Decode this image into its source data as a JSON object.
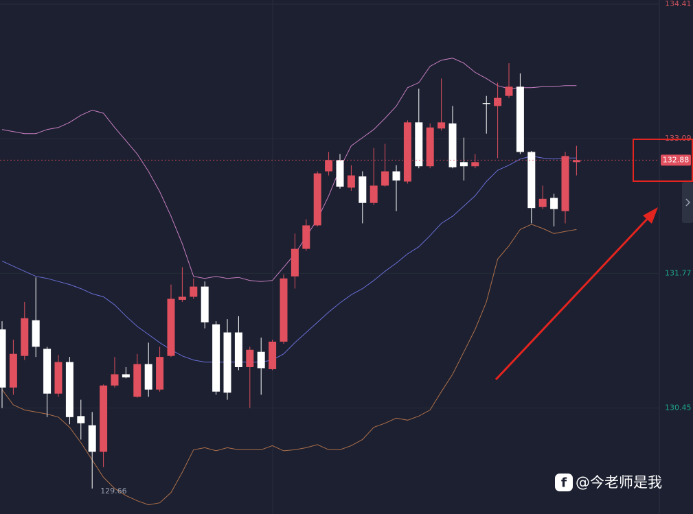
{
  "chart_data": {
    "type": "candlestick",
    "ylim": [
      129.41,
      134.45
    ],
    "yticks": [
      134.41,
      133.09,
      131.77,
      130.45
    ],
    "grid": true,
    "up_color": "#e0505f",
    "down_color": "#ffffff",
    "tick_up_color": "#c9535f",
    "tick_down_color": "#1fa58a",
    "last_price": 132.88,
    "open": [
      131.22,
      130.65,
      130.96,
      131.31,
      131.03,
      130.59,
      130.9,
      130.37,
      130.28,
      130.02,
      130.67,
      130.78,
      130.56,
      130.88,
      130.63,
      130.96,
      131.51,
      131.54,
      131.64,
      131.27,
      131.19,
      131.19,
      130.85,
      131.0,
      130.83,
      131.1,
      131.74,
      132.01,
      132.24,
      132.77,
      132.88,
      132.61,
      132.72,
      132.46,
      132.63,
      132.77,
      132.67,
      133.25,
      132.82,
      133.19,
      133.24,
      132.86,
      132.82,
      133.44,
      133.41,
      133.51,
      133.6,
      132.96,
      132.42,
      132.51,
      132.38,
      132.86
    ],
    "high": [
      131.3,
      131.12,
      131.49,
      131.73,
      131.05,
      130.97,
      130.95,
      130.53,
      130.41,
      130.68,
      130.95,
      130.85,
      130.98,
      131.09,
      131.05,
      131.66,
      131.83,
      131.72,
      131.69,
      131.3,
      131.32,
      131.35,
      131.05,
      131.14,
      131.12,
      131.76,
      132.16,
      132.3,
      132.77,
      132.96,
      132.94,
      132.83,
      132.77,
      133.0,
      133.04,
      132.83,
      133.27,
      133.58,
      133.24,
      133.68,
      133.41,
      133.1,
      132.94,
      133.51,
      133.64,
      133.83,
      133.73,
      132.97,
      132.63,
      132.55,
      132.96,
      133.02
    ],
    "low": [
      130.45,
      130.58,
      130.92,
      130.95,
      130.36,
      130.56,
      130.29,
      130.14,
      129.66,
      129.87,
      130.65,
      130.74,
      130.55,
      130.56,
      130.61,
      130.95,
      131.49,
      131.52,
      131.23,
      130.58,
      130.53,
      130.82,
      130.45,
      130.58,
      130.82,
      131.08,
      131.62,
      131.99,
      132.23,
      132.73,
      132.6,
      132.58,
      132.26,
      132.44,
      132.62,
      132.38,
      132.65,
      132.8,
      132.8,
      133.17,
      132.8,
      132.68,
      132.8,
      133.14,
      132.9,
      133.49,
      132.94,
      132.26,
      132.4,
      132.23,
      132.26,
      132.73
    ],
    "close": [
      130.65,
      130.98,
      131.33,
      131.05,
      130.59,
      130.9,
      130.36,
      130.3,
      130.02,
      130.67,
      130.78,
      130.75,
      130.88,
      130.63,
      130.95,
      131.52,
      131.54,
      131.64,
      131.29,
      130.61,
      130.6,
      130.85,
      131.02,
      130.84,
      131.1,
      131.72,
      132.01,
      132.24,
      132.75,
      132.88,
      132.62,
      132.73,
      132.46,
      132.63,
      132.77,
      132.68,
      133.25,
      132.82,
      133.2,
      133.25,
      132.81,
      132.82,
      132.86,
      133.43,
      133.49,
      133.6,
      132.96,
      132.41,
      132.5,
      132.4,
      132.92,
      132.88
    ],
    "lines": [
      {
        "color": "#c97fc4",
        "values": [
          133.18,
          133.16,
          133.14,
          133.14,
          133.18,
          133.2,
          133.25,
          133.32,
          133.37,
          133.34,
          133.2,
          133.07,
          132.94,
          132.77,
          132.57,
          132.33,
          132.06,
          131.74,
          131.72,
          131.74,
          131.72,
          131.73,
          131.7,
          131.69,
          131.7,
          131.83,
          131.96,
          132.13,
          132.3,
          132.53,
          132.8,
          133.02,
          133.1,
          133.18,
          133.29,
          133.41,
          133.59,
          133.64,
          133.8,
          133.86,
          133.88,
          133.83,
          133.74,
          133.68,
          133.61,
          133.58,
          133.59,
          133.59,
          133.6,
          133.6,
          133.61,
          133.61
        ]
      },
      {
        "color": "#6a6fd8",
        "values": [
          131.89,
          131.84,
          131.79,
          131.74,
          131.72,
          131.69,
          131.66,
          131.62,
          131.57,
          131.54,
          131.46,
          131.35,
          131.25,
          131.17,
          131.09,
          131.02,
          130.96,
          130.92,
          130.9,
          130.9,
          130.9,
          130.9,
          130.9,
          130.9,
          130.92,
          130.98,
          131.09,
          131.19,
          131.29,
          131.39,
          131.48,
          131.56,
          131.62,
          131.7,
          131.79,
          131.87,
          131.96,
          132.03,
          132.14,
          132.26,
          132.33,
          132.43,
          132.53,
          132.67,
          132.78,
          132.83,
          132.89,
          132.92,
          132.9,
          132.89,
          132.9,
          132.9
        ]
      },
      {
        "color": "#b0704a",
        "values": [
          130.63,
          130.48,
          130.43,
          130.41,
          130.39,
          130.36,
          130.26,
          130.11,
          129.94,
          129.77,
          129.66,
          129.59,
          129.54,
          129.5,
          129.52,
          129.62,
          129.82,
          130.04,
          130.06,
          130.03,
          130.06,
          130.04,
          130.04,
          130.04,
          130.08,
          130.03,
          130.04,
          130.06,
          130.09,
          130.04,
          130.04,
          130.08,
          130.14,
          130.26,
          130.3,
          130.35,
          130.33,
          130.37,
          130.43,
          130.61,
          130.78,
          131.0,
          131.22,
          131.49,
          131.91,
          132.04,
          132.2,
          132.25,
          132.21,
          132.16,
          132.18,
          132.2
        ]
      }
    ],
    "watermark": "@今老师是我"
  }
}
